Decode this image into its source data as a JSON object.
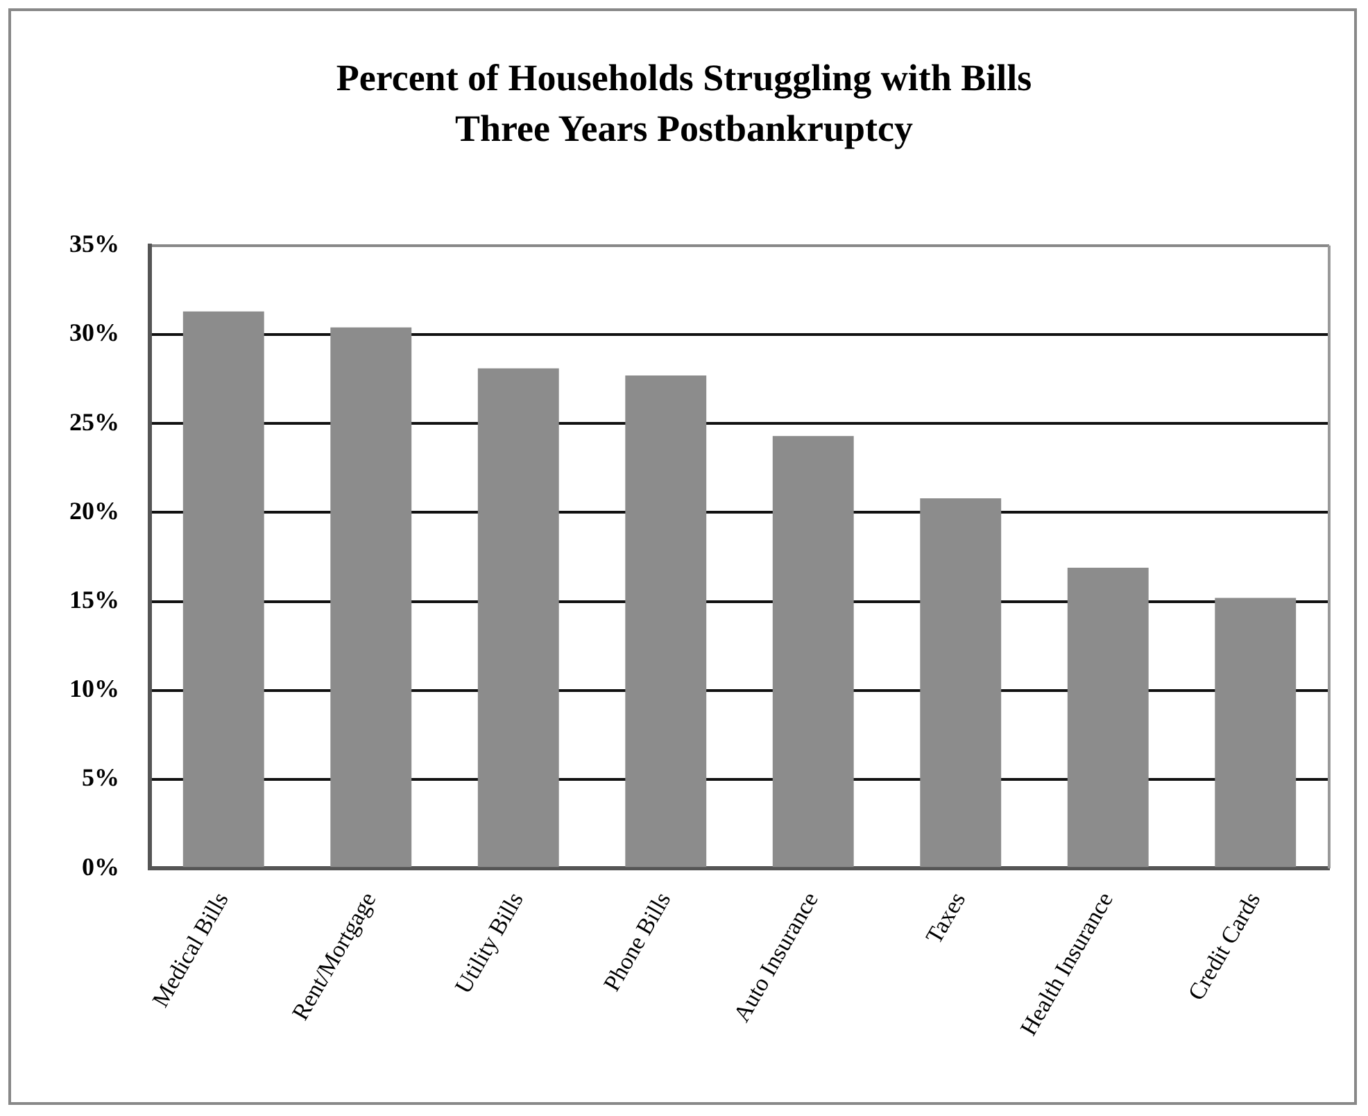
{
  "chart_data": {
    "type": "bar",
    "title": [
      "Percent of Households Struggling with Bills",
      "Three Years Postbankruptcy"
    ],
    "categories": [
      "Medical Bills",
      "Rent/Mortgage",
      "Utility Bills",
      "Phone Bills",
      "Auto Insurance",
      "Taxes",
      "Health Insurance",
      "Credit Cards"
    ],
    "values": [
      31.3,
      30.4,
      28.1,
      27.7,
      24.3,
      20.8,
      16.9,
      15.2
    ],
    "color": "#8c8c8c",
    "ylim": [
      0,
      35
    ],
    "yticks": [
      {
        "value": 0,
        "label": "0%"
      },
      {
        "value": 5,
        "label": "5%"
      },
      {
        "value": 10,
        "label": "10%"
      },
      {
        "value": 15,
        "label": "15%"
      },
      {
        "value": 20,
        "label": "20%"
      },
      {
        "value": 25,
        "label": "25%"
      },
      {
        "value": 30,
        "label": "30%"
      },
      {
        "value": 35,
        "label": "35%"
      }
    ],
    "grid": "y",
    "legend": false
  }
}
